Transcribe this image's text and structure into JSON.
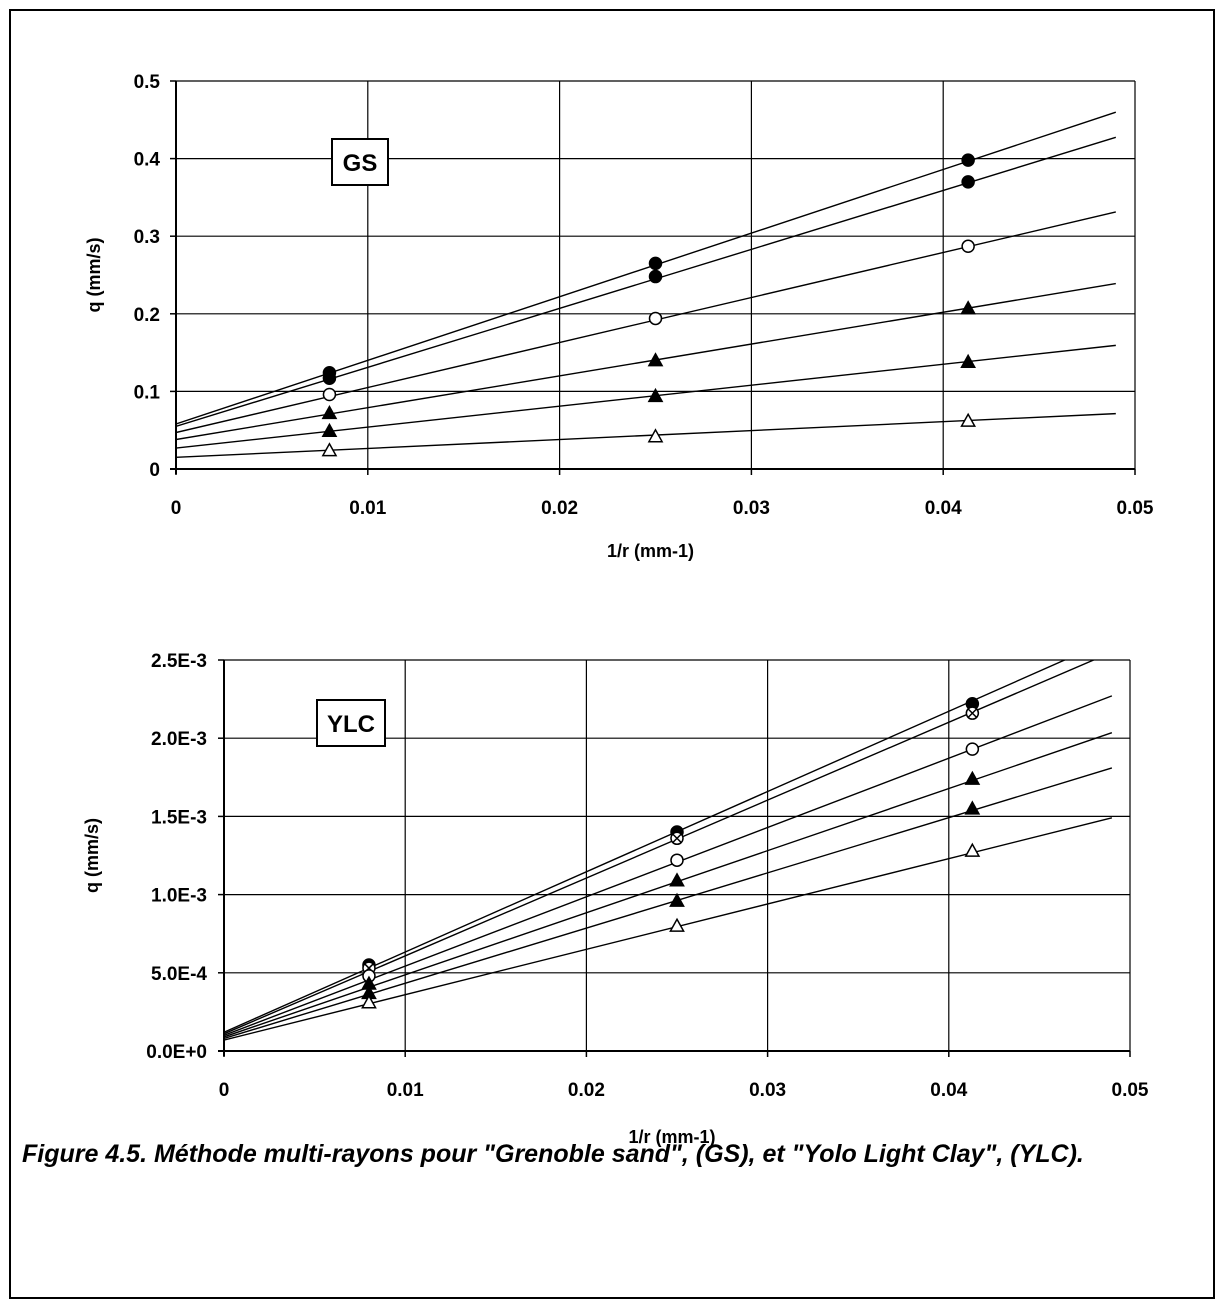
{
  "caption": "Figure 4.5. Méthode multi-rayons pour \"Grenoble sand\", (GS), et \"Yolo Light Clay\", (YLC).",
  "chart_data": [
    {
      "type": "scatter",
      "label": "GS",
      "xlabel": "1/r (mm-1)",
      "ylabel": "q (mm/s)",
      "xlim": [
        0,
        0.05
      ],
      "ylim": [
        0,
        0.5
      ],
      "x_ticks": [
        "0",
        "0.01",
        "0.02",
        "0.03",
        "0.04",
        "0.05"
      ],
      "y_ticks": [
        "0",
        "0.1",
        "0.2",
        "0.3",
        "0.4",
        "0.5"
      ],
      "grid": true,
      "fit_lines_to_x": 0.049,
      "x": [
        0.008,
        0.025,
        0.0413
      ],
      "series": [
        {
          "marker": "filled-circle",
          "values": [
            0.124,
            0.265,
            0.398
          ],
          "fit": {
            "intercept": 0.058,
            "slope": 8.2
          }
        },
        {
          "marker": "filled-circle",
          "values": [
            0.117,
            0.248,
            0.37
          ],
          "fit": {
            "intercept": 0.055,
            "slope": 7.6
          }
        },
        {
          "marker": "open-circle",
          "values": [
            0.096,
            0.194,
            0.287
          ],
          "fit": {
            "intercept": 0.047,
            "slope": 5.8
          }
        },
        {
          "marker": "filled-triangle",
          "values": [
            0.072,
            0.14,
            0.207
          ],
          "fit": {
            "intercept": 0.038,
            "slope": 4.1
          }
        },
        {
          "marker": "filled-triangle",
          "values": [
            0.049,
            0.094,
            0.138
          ],
          "fit": {
            "intercept": 0.027,
            "slope": 2.7
          }
        },
        {
          "marker": "open-triangle",
          "values": [
            0.024,
            0.042,
            0.062
          ],
          "fit": {
            "intercept": 0.015,
            "slope": 1.15
          }
        }
      ]
    },
    {
      "type": "scatter",
      "label": "YLC",
      "xlabel": "1/r (mm-1)",
      "ylabel": "q (mm/s)",
      "xlim": [
        0,
        0.05
      ],
      "ylim": [
        0,
        0.0025
      ],
      "x_ticks": [
        "0",
        "0.01",
        "0.02",
        "0.03",
        "0.04",
        "0.05"
      ],
      "y_ticks": [
        "0.0E+0",
        "5.0E-4",
        "1.0E-3",
        "1.5E-3",
        "2.0E-3",
        "2.5E-3"
      ],
      "grid": true,
      "fit_lines_to_x": 0.049,
      "x": [
        0.008,
        0.025,
        0.0413
      ],
      "series": [
        {
          "marker": "filled-circle",
          "values": [
            0.00055,
            0.0014,
            0.00222
          ],
          "fit": {
            "intercept": 0.00012,
            "slope": 0.0513
          }
        },
        {
          "marker": "crossed-circle",
          "values": [
            0.00053,
            0.00136,
            0.00216
          ],
          "fit": {
            "intercept": 0.00011,
            "slope": 0.0498
          }
        },
        {
          "marker": "open-circle",
          "values": [
            0.00048,
            0.00122,
            0.00193
          ],
          "fit": {
            "intercept": 0.0001,
            "slope": 0.0443
          }
        },
        {
          "marker": "filled-triangle",
          "values": [
            0.00043,
            0.00109,
            0.00174
          ],
          "fit": {
            "intercept": 9e-05,
            "slope": 0.0397
          }
        },
        {
          "marker": "filled-triangle",
          "values": [
            0.00037,
            0.00096,
            0.00155
          ],
          "fit": {
            "intercept": 8e-05,
            "slope": 0.0353
          }
        },
        {
          "marker": "open-triangle",
          "values": [
            0.00031,
            0.0008,
            0.00128
          ],
          "fit": {
            "intercept": 7e-05,
            "slope": 0.029
          }
        }
      ]
    }
  ]
}
